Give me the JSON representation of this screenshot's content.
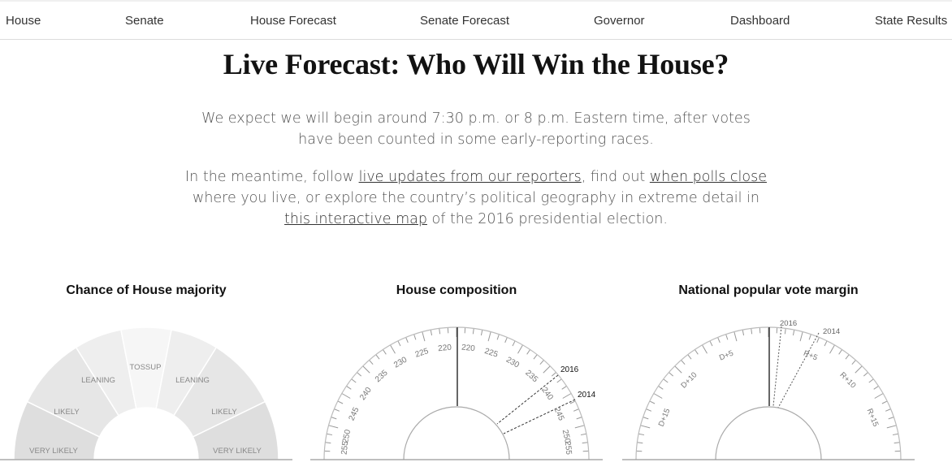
{
  "nav": {
    "items": [
      "House",
      "Senate",
      "House Forecast",
      "Senate Forecast",
      "Governor",
      "Dashboard",
      "State Results"
    ]
  },
  "page": {
    "title": "Live Forecast: Who Will Win the House?",
    "intro": "We expect we will begin around 7:30 p.m. or 8 p.m. Eastern time, after votes have been counted in some early-reporting races.",
    "meantime": {
      "t1": "In the meantime, follow ",
      "link1": "live updates from our reporters",
      "t2": ", find out ",
      "link2": "when polls close",
      "t3": " where you live, or explore the country’s political geography in extreme detail in ",
      "link3": "this interactive map",
      "t4": " of the 2016 presidential election."
    }
  },
  "charts": {
    "majority": {
      "title": "Chance of House majority",
      "labels": [
        "VERY LIKELY",
        "LIKELY",
        "LEANING",
        "TOSSUP",
        "LEANING",
        "LIKELY",
        "VERY LIKELY"
      ]
    },
    "composition": {
      "title": "House composition",
      "left_ticks": [
        "220",
        "225",
        "230",
        "235",
        "240",
        "245",
        "250",
        "255"
      ],
      "right_ticks": [
        "220",
        "225",
        "230",
        "235",
        "240",
        "245",
        "250",
        "255"
      ],
      "markers": [
        "2016",
        "2014"
      ]
    },
    "popular_vote": {
      "title": "National popular vote margin",
      "left_ticks": [
        "D+5",
        "D+10",
        "D+15"
      ],
      "right_ticks": [
        "R+5",
        "R+10",
        "R+15"
      ],
      "markers": [
        "2016",
        "2014"
      ]
    }
  },
  "colors": {
    "accent_text": "#121212",
    "muted_text": "#555555",
    "gauge_line": "#999999"
  }
}
